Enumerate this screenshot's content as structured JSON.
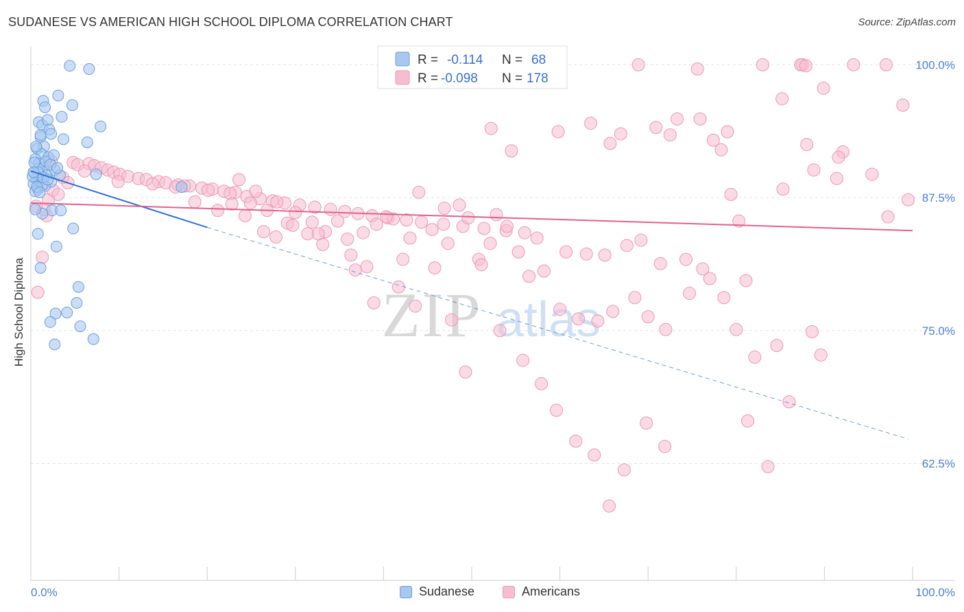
{
  "header": {
    "title": "SUDANESE VS AMERICAN HIGH SCHOOL DIPLOMA CORRELATION CHART",
    "source": "Source: ZipAtlas.com"
  },
  "watermark": {
    "zip": "ZIP",
    "atlas": "atlas"
  },
  "legend_top": {
    "rows": [
      {
        "r_label": "R =",
        "r_value": "-0.114",
        "n_label": "N =",
        "n_value": "68"
      },
      {
        "r_label": "R =",
        "r_value": "-0.098",
        "n_label": "N =",
        "n_value": "178"
      }
    ]
  },
  "legend_bottom": {
    "series1": "Sudanese",
    "series2": "Americans"
  },
  "axes": {
    "ylabel": "High School Diploma",
    "x_min_label": "0.0%",
    "x_max_label": "100.0%",
    "y_ticks": [
      "100.0%",
      "87.5%",
      "75.0%",
      "62.5%"
    ]
  },
  "colors": {
    "sudanese_fill": "#a8c8f0",
    "sudanese_stroke": "#6a9ee0",
    "sudanese_line": "#2f6fd6",
    "americans_fill": "#f6bdd0",
    "americans_stroke": "#ee95b4",
    "americans_line": "#e0608e",
    "tick_text": "#4a7fd4"
  },
  "chart_data": {
    "type": "scatter",
    "title": "SUDANESE VS AMERICAN HIGH SCHOOL DIPLOMA CORRELATION CHART",
    "xlabel": "",
    "ylabel": "High School Diploma",
    "xlim": [
      0,
      100
    ],
    "ylim": [
      51.5,
      101.7
    ],
    "y_ticks": [
      62.5,
      75.0,
      87.5,
      100.0
    ],
    "series": [
      {
        "name": "Sudanese",
        "R": -0.114,
        "N": 68,
        "trend": {
          "x0": 0,
          "y0": 90.0,
          "x1": 20,
          "y1": 84.7,
          "dash_to_x": 99.5,
          "dash_to_y": 64.8
        },
        "points": [
          [
            4.4,
            99.9
          ],
          [
            6.6,
            99.6
          ],
          [
            1.4,
            96.6
          ],
          [
            3.1,
            97.1
          ],
          [
            4.7,
            96.2
          ],
          [
            1.6,
            96.0
          ],
          [
            3.5,
            95.1
          ],
          [
            0.9,
            94.6
          ],
          [
            1.3,
            94.3
          ],
          [
            1.9,
            94.8
          ],
          [
            7.9,
            94.2
          ],
          [
            2.1,
            93.9
          ],
          [
            2.3,
            93.5
          ],
          [
            1.1,
            93.2
          ],
          [
            3.7,
            93.0
          ],
          [
            6.4,
            92.7
          ],
          [
            0.7,
            92.1
          ],
          [
            1.5,
            92.3
          ],
          [
            1.2,
            91.6
          ],
          [
            2.0,
            91.3
          ],
          [
            0.5,
            91.1
          ],
          [
            0.9,
            90.7
          ],
          [
            1.4,
            90.3
          ],
          [
            2.7,
            90.1
          ],
          [
            0.4,
            89.8
          ],
          [
            1.8,
            89.6
          ],
          [
            0.6,
            89.3
          ],
          [
            1.0,
            89.1
          ],
          [
            2.3,
            89.0
          ],
          [
            0.3,
            88.8
          ],
          [
            1.6,
            88.6
          ],
          [
            0.8,
            88.3
          ],
          [
            1.3,
            88.7
          ],
          [
            0.5,
            88.1
          ],
          [
            3.3,
            89.6
          ],
          [
            0.9,
            90.2
          ],
          [
            1.7,
            90.9
          ],
          [
            2.6,
            91.5
          ],
          [
            0.6,
            92.3
          ],
          [
            1.1,
            93.4
          ],
          [
            0.8,
            89.9
          ],
          [
            1.4,
            89.4
          ],
          [
            2.2,
            90.6
          ],
          [
            0.4,
            90.8
          ],
          [
            1.9,
            89.2
          ],
          [
            0.2,
            89.5
          ],
          [
            0.7,
            88.5
          ],
          [
            17.1,
            88.5
          ],
          [
            2.4,
            86.3
          ],
          [
            3.4,
            86.3
          ],
          [
            1.3,
            86.0
          ],
          [
            0.5,
            86.4
          ],
          [
            4.8,
            84.6
          ],
          [
            0.8,
            84.1
          ],
          [
            2.9,
            82.9
          ],
          [
            1.1,
            80.9
          ],
          [
            5.4,
            79.1
          ],
          [
            5.2,
            77.6
          ],
          [
            4.1,
            76.7
          ],
          [
            2.8,
            76.6
          ],
          [
            2.2,
            75.8
          ],
          [
            5.6,
            75.4
          ],
          [
            7.1,
            74.2
          ],
          [
            2.7,
            73.7
          ],
          [
            1.0,
            88.0
          ],
          [
            0.3,
            89.9
          ],
          [
            3.0,
            90.3
          ],
          [
            7.4,
            89.7
          ]
        ]
      },
      {
        "name": "Americans",
        "R": -0.098,
        "N": 178,
        "trend": {
          "x0": 0,
          "y0": 87.0,
          "x1": 100,
          "y1": 84.4
        },
        "points": [
          [
            68.9,
            100.0
          ],
          [
            83.0,
            100.0
          ],
          [
            87.5,
            100.0
          ],
          [
            87.3,
            100.0
          ],
          [
            93.3,
            100.0
          ],
          [
            97.0,
            100.0
          ],
          [
            75.6,
            99.6
          ],
          [
            87.9,
            99.9
          ],
          [
            89.9,
            97.8
          ],
          [
            85.2,
            96.8
          ],
          [
            98.9,
            96.2
          ],
          [
            73.3,
            94.9
          ],
          [
            75.9,
            94.9
          ],
          [
            63.5,
            94.5
          ],
          [
            70.9,
            94.1
          ],
          [
            52.2,
            94.0
          ],
          [
            59.8,
            93.7
          ],
          [
            66.9,
            93.5
          ],
          [
            72.5,
            93.4
          ],
          [
            79.0,
            93.7
          ],
          [
            77.4,
            92.9
          ],
          [
            65.7,
            92.6
          ],
          [
            88.0,
            92.5
          ],
          [
            78.3,
            92.0
          ],
          [
            54.5,
            91.9
          ],
          [
            92.1,
            91.8
          ],
          [
            91.6,
            91.3
          ],
          [
            2.3,
            90.9
          ],
          [
            4.8,
            90.8
          ],
          [
            6.6,
            90.7
          ],
          [
            5.3,
            90.6
          ],
          [
            7.2,
            90.5
          ],
          [
            8.0,
            90.3
          ],
          [
            8.7,
            90.1
          ],
          [
            9.4,
            89.9
          ],
          [
            10.1,
            89.7
          ],
          [
            11.0,
            89.5
          ],
          [
            12.2,
            89.3
          ],
          [
            13.1,
            89.2
          ],
          [
            14.5,
            89.0
          ],
          [
            15.3,
            88.9
          ],
          [
            16.7,
            88.7
          ],
          [
            18.0,
            88.6
          ],
          [
            19.4,
            88.4
          ],
          [
            20.6,
            88.3
          ],
          [
            21.9,
            88.1
          ],
          [
            23.2,
            88.0
          ],
          [
            6.1,
            90.0
          ],
          [
            3.6,
            89.4
          ],
          [
            9.9,
            89.0
          ],
          [
            13.8,
            88.8
          ],
          [
            17.4,
            88.6
          ],
          [
            20.1,
            88.2
          ],
          [
            22.6,
            87.9
          ],
          [
            24.5,
            87.6
          ],
          [
            26.0,
            87.4
          ],
          [
            27.4,
            87.2
          ],
          [
            28.8,
            87.0
          ],
          [
            30.5,
            86.8
          ],
          [
            32.2,
            86.6
          ],
          [
            34.0,
            86.4
          ],
          [
            35.6,
            86.2
          ],
          [
            37.1,
            86.0
          ],
          [
            38.7,
            85.8
          ],
          [
            40.5,
            85.6
          ],
          [
            42.6,
            85.4
          ],
          [
            44.3,
            85.2
          ],
          [
            46.8,
            85.0
          ],
          [
            49.0,
            84.8
          ],
          [
            51.4,
            84.6
          ],
          [
            53.9,
            84.4
          ],
          [
            56.0,
            84.2
          ],
          [
            23.6,
            89.2
          ],
          [
            25.5,
            88.1
          ],
          [
            27.9,
            87.1
          ],
          [
            30.0,
            86.1
          ],
          [
            31.9,
            85.2
          ],
          [
            33.4,
            84.3
          ],
          [
            35.9,
            83.6
          ],
          [
            37.7,
            84.2
          ],
          [
            39.2,
            85.0
          ],
          [
            41.1,
            85.5
          ],
          [
            43.0,
            83.7
          ],
          [
            45.5,
            84.5
          ],
          [
            47.3,
            83.2
          ],
          [
            49.6,
            85.6
          ],
          [
            52.1,
            83.2
          ],
          [
            55.3,
            82.4
          ],
          [
            57.4,
            83.7
          ],
          [
            60.7,
            82.4
          ],
          [
            63.0,
            82.2
          ],
          [
            65.1,
            82.1
          ],
          [
            67.6,
            83.0
          ],
          [
            69.2,
            83.5
          ],
          [
            71.4,
            81.3
          ],
          [
            74.3,
            81.7
          ],
          [
            77.0,
            79.9
          ],
          [
            79.4,
            87.8
          ],
          [
            80.3,
            85.3
          ],
          [
            81.1,
            79.7
          ],
          [
            82.1,
            72.5
          ],
          [
            83.6,
            62.2
          ],
          [
            85.3,
            88.3
          ],
          [
            88.8,
            90.1
          ],
          [
            91.4,
            89.3
          ],
          [
            99.5,
            87.3
          ],
          [
            22.8,
            86.9
          ],
          [
            24.3,
            85.8
          ],
          [
            26.8,
            86.3
          ],
          [
            29.1,
            85.1
          ],
          [
            31.4,
            84.1
          ],
          [
            33.1,
            83.1
          ],
          [
            36.3,
            82.1
          ],
          [
            38.1,
            81.0
          ],
          [
            40.3,
            85.7
          ],
          [
            42.2,
            81.7
          ],
          [
            44.0,
            88.0
          ],
          [
            46.9,
            86.5
          ],
          [
            48.6,
            86.8
          ],
          [
            50.8,
            81.7
          ],
          [
            52.8,
            85.9
          ],
          [
            54.0,
            84.8
          ],
          [
            56.5,
            80.1
          ],
          [
            58.2,
            80.6
          ],
          [
            60.0,
            77.0
          ],
          [
            62.1,
            76.1
          ],
          [
            64.3,
            75.9
          ],
          [
            66.0,
            76.8
          ],
          [
            68.5,
            78.1
          ],
          [
            70.0,
            76.3
          ],
          [
            72.0,
            75.1
          ],
          [
            74.7,
            78.5
          ],
          [
            76.2,
            80.8
          ],
          [
            78.6,
            78.1
          ],
          [
            80.0,
            75.1
          ],
          [
            81.3,
            66.5
          ],
          [
            84.6,
            73.6
          ],
          [
            86.0,
            68.3
          ],
          [
            88.6,
            74.9
          ],
          [
            89.6,
            72.7
          ],
          [
            95.4,
            89.7
          ],
          [
            97.2,
            85.7
          ],
          [
            16.4,
            88.5
          ],
          [
            18.6,
            87.1
          ],
          [
            21.2,
            86.3
          ],
          [
            24.9,
            87.0
          ],
          [
            26.4,
            84.3
          ],
          [
            27.8,
            83.8
          ],
          [
            29.7,
            84.9
          ],
          [
            32.6,
            84.1
          ],
          [
            34.8,
            85.3
          ],
          [
            36.8,
            80.7
          ],
          [
            38.9,
            77.6
          ],
          [
            41.7,
            79.1
          ],
          [
            43.6,
            77.3
          ],
          [
            45.8,
            80.9
          ],
          [
            47.7,
            76.0
          ],
          [
            49.3,
            71.1
          ],
          [
            51.1,
            81.2
          ],
          [
            53.2,
            75.0
          ],
          [
            55.8,
            72.2
          ],
          [
            57.9,
            70.0
          ],
          [
            59.6,
            67.5
          ],
          [
            61.8,
            64.6
          ],
          [
            63.9,
            63.3
          ],
          [
            65.6,
            58.5
          ],
          [
            67.3,
            61.9
          ],
          [
            69.8,
            66.3
          ],
          [
            71.9,
            64.1
          ],
          [
            0.8,
            78.6
          ],
          [
            1.3,
            81.9
          ],
          [
            1.8,
            85.8
          ],
          [
            2.0,
            87.3
          ],
          [
            2.5,
            88.2
          ],
          [
            3.1,
            87.8
          ],
          [
            1.5,
            86.4
          ],
          [
            0.6,
            86.7
          ],
          [
            4.2,
            88.9
          ]
        ]
      }
    ]
  }
}
